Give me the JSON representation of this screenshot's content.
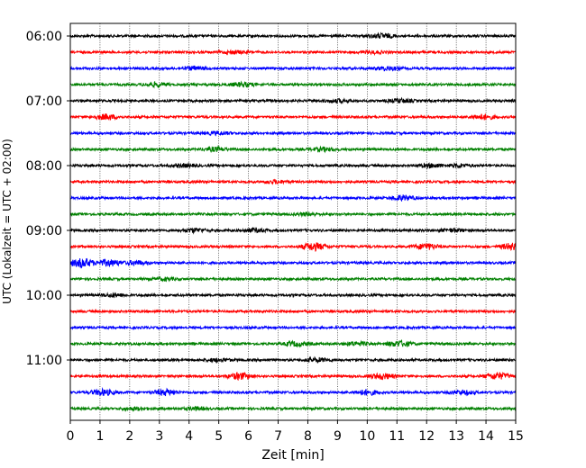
{
  "chart_data": {
    "type": "line",
    "title": "",
    "xlabel": "Zeit  [min]",
    "ylabel": "UTC (Lokalzeit = UTC + 02:00)",
    "xlim": [
      0,
      15
    ],
    "x_ticks": [
      0,
      1,
      2,
      3,
      4,
      5,
      6,
      7,
      8,
      9,
      10,
      11,
      12,
      13,
      14,
      15
    ],
    "x_tick_labels": [
      "0",
      "1",
      "2",
      "3",
      "4",
      "5",
      "6",
      "7",
      "8",
      "9",
      "10",
      "11",
      "12",
      "13",
      "14",
      "15"
    ],
    "grid_x": true,
    "y_tick_labels": [
      "06:00",
      "07:00",
      "08:00",
      "09:00",
      "10:00",
      "11:00"
    ],
    "trace_interval_minutes": 15,
    "traces": [
      {
        "start": "06:00",
        "color": "#000000",
        "bursts": [
          [
            10.5,
            1.6
          ]
        ]
      },
      {
        "start": "06:15",
        "color": "#ff0000",
        "bursts": [
          [
            5.5,
            1.3
          ],
          [
            10.2,
            1.2
          ]
        ]
      },
      {
        "start": "06:30",
        "color": "#0000ff",
        "bursts": [
          [
            4.2,
            1.4
          ],
          [
            10.7,
            1.5
          ]
        ]
      },
      {
        "start": "06:45",
        "color": "#008000",
        "bursts": [
          [
            2.9,
            1.5
          ],
          [
            5.8,
            1.6
          ]
        ]
      },
      {
        "start": "07:00",
        "color": "#000000",
        "bursts": [
          [
            9.0,
            1.3
          ],
          [
            11.1,
            1.5
          ]
        ]
      },
      {
        "start": "07:15",
        "color": "#ff0000",
        "bursts": [
          [
            1.2,
            1.8
          ],
          [
            13.9,
            1.8
          ]
        ]
      },
      {
        "start": "07:30",
        "color": "#0000ff",
        "bursts": [
          [
            5.0,
            1.3
          ]
        ]
      },
      {
        "start": "07:45",
        "color": "#008000",
        "bursts": [
          [
            4.9,
            1.5
          ],
          [
            8.5,
            1.4
          ]
        ]
      },
      {
        "start": "08:00",
        "color": "#000000",
        "bursts": [
          [
            3.8,
            1.3
          ],
          [
            12.2,
            1.5
          ],
          [
            13.1,
            1.4
          ]
        ]
      },
      {
        "start": "08:15",
        "color": "#ff0000",
        "bursts": [
          [
            6.9,
            1.3
          ]
        ]
      },
      {
        "start": "08:30",
        "color": "#0000ff",
        "bursts": [
          [
            11.2,
            1.8
          ]
        ]
      },
      {
        "start": "08:45",
        "color": "#008000",
        "bursts": [
          [
            8.0,
            1.3
          ]
        ]
      },
      {
        "start": "09:00",
        "color": "#000000",
        "bursts": [
          [
            4.2,
            1.5
          ],
          [
            6.2,
            1.4
          ],
          [
            12.9,
            1.3
          ]
        ]
      },
      {
        "start": "09:15",
        "color": "#ff0000",
        "bursts": [
          [
            8.2,
            2.5
          ],
          [
            12.0,
            2.0
          ],
          [
            14.9,
            2.3
          ]
        ]
      },
      {
        "start": "09:30",
        "color": "#0000ff",
        "bursts": [
          [
            0.4,
            2.8
          ],
          [
            1.3,
            2.2
          ],
          [
            2.2,
            1.6
          ]
        ]
      },
      {
        "start": "09:45",
        "color": "#008000",
        "bursts": [
          [
            3.2,
            1.2
          ]
        ]
      },
      {
        "start": "10:00",
        "color": "#000000",
        "bursts": [
          [
            1.5,
            1.4
          ]
        ]
      },
      {
        "start": "10:15",
        "color": "#ff0000",
        "bursts": []
      },
      {
        "start": "10:30",
        "color": "#0000ff",
        "bursts": []
      },
      {
        "start": "10:45",
        "color": "#008000",
        "bursts": [
          [
            7.6,
            1.6
          ],
          [
            9.6,
            1.5
          ],
          [
            11.1,
            2.0
          ]
        ]
      },
      {
        "start": "11:00",
        "color": "#000000",
        "bursts": [
          [
            5.0,
            1.3
          ],
          [
            8.3,
            1.6
          ]
        ]
      },
      {
        "start": "11:15",
        "color": "#ff0000",
        "bursts": [
          [
            5.7,
            2.2
          ],
          [
            10.5,
            2.0
          ],
          [
            14.4,
            2.2
          ]
        ]
      },
      {
        "start": "11:30",
        "color": "#0000ff",
        "bursts": [
          [
            1.1,
            2.0
          ],
          [
            3.2,
            2.0
          ],
          [
            10.0,
            1.8
          ],
          [
            13.2,
            1.6
          ]
        ]
      },
      {
        "start": "11:45",
        "color": "#008000",
        "bursts": [
          [
            2.2,
            1.3
          ],
          [
            4.2,
            1.2
          ]
        ]
      }
    ]
  }
}
